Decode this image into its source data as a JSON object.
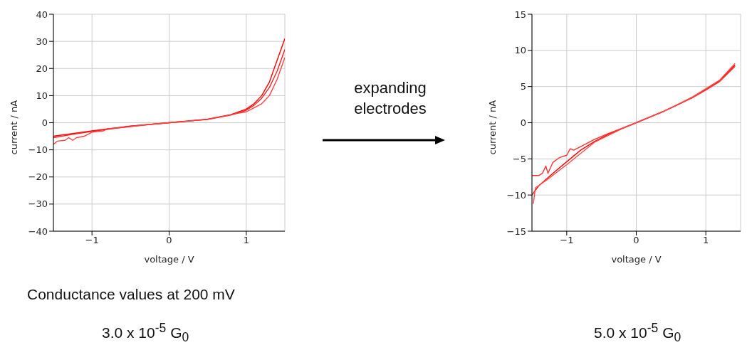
{
  "chart_data": [
    {
      "type": "line",
      "xlabel": "voltage / V",
      "ylabel": "current / nA",
      "xlim": [
        -1.5,
        1.5
      ],
      "xticks": [
        -1,
        0,
        1
      ],
      "ylim": [
        -40,
        40
      ],
      "yticks": [
        -40,
        -30,
        -20,
        -10,
        0,
        10,
        20,
        30,
        40
      ],
      "grid": true,
      "line_style": "solid",
      "annotations": [
        "expanding electrodes",
        "Conductance values at 200 mV",
        "3.0 x 10$^{-5}$ G$_{0}$"
      ],
      "series": [
        {
          "color": "#ff0000",
          "x": [
            -1.5,
            -1.25,
            -1,
            -0.5,
            0,
            0.5,
            0.8,
            1.0,
            1.1,
            1.2,
            1.3,
            1.4,
            1.5
          ],
          "values": [
            -5,
            -4,
            -3,
            -1.2,
            0,
            1.3,
            3,
            5,
            7,
            10,
            15,
            23,
            31
          ]
        },
        {
          "color": "#ff2020",
          "x": [
            -1.5,
            -1.25,
            -1,
            -0.5,
            0,
            0.5,
            0.8,
            1.0,
            1.1,
            1.2,
            1.3,
            1.4,
            1.5
          ],
          "values": [
            -5.5,
            -4.3,
            -3.2,
            -1.3,
            0,
            1.2,
            2.8,
            4.6,
            6.4,
            9,
            13,
            19,
            27
          ]
        },
        {
          "color": "#ff4040",
          "x": [
            -1.5,
            -1.45,
            -1.35,
            -1.3,
            -1.25,
            -1.2,
            -1.1,
            -1,
            -0.85,
            -0.8,
            -0.6,
            -0.3,
            0,
            0.5,
            0.9,
            1.0,
            1.1,
            1.2,
            1.3,
            1.4,
            1.5
          ],
          "values": [
            -8,
            -6.8,
            -6.5,
            -5.5,
            -6.5,
            -5.5,
            -5,
            -3.5,
            -3,
            -2.2,
            -1.8,
            -0.8,
            0,
            1.2,
            3.5,
            4,
            5.5,
            7,
            10,
            16,
            24
          ]
        }
      ]
    },
    {
      "type": "line",
      "xlabel": "voltage / V",
      "ylabel": "current / nA",
      "xlim": [
        -1.5,
        1.5
      ],
      "xticks": [
        -1,
        0,
        1
      ],
      "ylim": [
        -15,
        15
      ],
      "yticks": [
        -15,
        -10,
        -5,
        0,
        5,
        10,
        15
      ],
      "grid": true,
      "line_style": "solid",
      "annotations": [
        "5.0 x 10$^{-5}$ G$_{0}$"
      ],
      "series": [
        {
          "color": "#ff0000",
          "x": [
            -1.5,
            -1.4,
            -1.2,
            -1,
            -0.8,
            -0.6,
            -0.4,
            -0.2,
            0,
            0.2,
            0.4,
            0.6,
            0.8,
            1,
            1.2,
            1.42
          ],
          "values": [
            -10,
            -8.7,
            -7,
            -5.4,
            -3.8,
            -2.6,
            -1.6,
            -0.8,
            0,
            0.8,
            1.6,
            2.5,
            3.5,
            4.6,
            5.8,
            8
          ]
        },
        {
          "color": "#ff3030",
          "x": [
            -1.5,
            -1.4,
            -1.35,
            -1.3,
            -1.27,
            -1.2,
            -1.1,
            -1,
            -0.95,
            -0.9,
            -0.8,
            -0.6,
            -0.4,
            0,
            0.4,
            0.8,
            1,
            1.2,
            1.42
          ],
          "values": [
            -7.3,
            -7.3,
            -7,
            -6,
            -7,
            -5.5,
            -4.8,
            -4.5,
            -3.6,
            -3.8,
            -3.3,
            -2.3,
            -1.5,
            0,
            1.6,
            3.4,
            4.5,
            5.7,
            7.8
          ]
        },
        {
          "color": "#ff4848",
          "x": [
            -1.48,
            -1.45,
            -1.3,
            -1,
            -0.6,
            -0.2,
            0,
            0.4,
            0.8,
            1.2,
            1.42
          ],
          "values": [
            -11.2,
            -9,
            -8,
            -5.8,
            -2.7,
            -0.8,
            0,
            1.6,
            3.5,
            5.9,
            8.2
          ]
        }
      ]
    }
  ]
}
